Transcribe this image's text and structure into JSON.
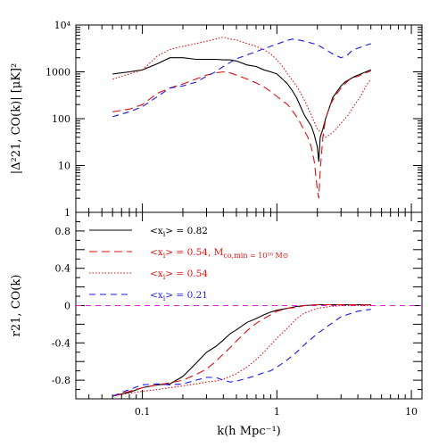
{
  "chart_data": [
    {
      "type": "line",
      "panel": "top",
      "ylabel": "|Δ²21, CO(k)| [μK]²",
      "xscale": "log",
      "yscale": "log",
      "xlim": [
        0.032,
        12
      ],
      "ylim": [
        1,
        10000
      ],
      "yticks": [
        1,
        10,
        100,
        1000,
        10000
      ],
      "ytick_labels": [
        "1",
        "10",
        "100",
        "1000",
        "10⁴"
      ],
      "series": [
        {
          "color": "#000000",
          "dash": "solid",
          "x": [
            0.06,
            0.08,
            0.1,
            0.13,
            0.16,
            0.2,
            0.25,
            0.3,
            0.35,
            0.4,
            0.45,
            0.5,
            0.6,
            0.7,
            0.8,
            0.9,
            1.0,
            1.1,
            1.2,
            1.3,
            1.4,
            1.5,
            1.6,
            1.7,
            1.8,
            1.9,
            2.0,
            2.05,
            2.1,
            2.2,
            2.3,
            2.4,
            2.5,
            2.6,
            2.8,
            3.0,
            3.2,
            3.5,
            3.8,
            4.2,
            4.6,
            5.0
          ],
          "y": [
            900,
            1000,
            1100,
            1500,
            2000,
            2000,
            1850,
            1850,
            1850,
            1800,
            1800,
            1700,
            1400,
            1300,
            1100,
            1000,
            900,
            700,
            550,
            400,
            280,
            180,
            120,
            90,
            70,
            45,
            25,
            12,
            40,
            60,
            100,
            140,
            200,
            280,
            380,
            500,
            600,
            700,
            800,
            900,
            1000,
            1100
          ]
        },
        {
          "color": "#e01010",
          "dash": "long",
          "x": [
            0.06,
            0.08,
            0.1,
            0.13,
            0.16,
            0.2,
            0.25,
            0.3,
            0.35,
            0.4,
            0.45,
            0.5,
            0.6,
            0.7,
            0.8,
            0.9,
            1.0,
            1.1,
            1.2,
            1.3,
            1.4,
            1.5,
            1.6,
            1.7,
            1.8,
            1.9,
            2.0,
            2.05,
            2.1,
            2.2,
            2.3,
            2.5,
            2.7,
            3.0,
            3.3,
            3.6,
            4.0,
            4.4,
            4.8,
            5.0
          ],
          "y": [
            140,
            160,
            200,
            350,
            450,
            550,
            700,
            850,
            950,
            1000,
            950,
            850,
            700,
            580,
            480,
            380,
            300,
            240,
            200,
            150,
            110,
            80,
            55,
            40,
            25,
            12,
            3,
            2,
            8,
            40,
            100,
            200,
            300,
            450,
            600,
            750,
            800,
            900,
            1000,
            1050
          ]
        },
        {
          "color": "#e01010",
          "dash": "dotted",
          "x": [
            0.06,
            0.08,
            0.1,
            0.13,
            0.16,
            0.2,
            0.25,
            0.3,
            0.35,
            0.4,
            0.45,
            0.5,
            0.6,
            0.7,
            0.8,
            0.9,
            1.0,
            1.1,
            1.2,
            1.4,
            1.6,
            1.8,
            2.0,
            2.3,
            2.6,
            3.0,
            3.4,
            3.8,
            4.2,
            4.6,
            5.0
          ],
          "y": [
            700,
            900,
            1100,
            2200,
            3000,
            3500,
            4000,
            4500,
            5000,
            5500,
            5000,
            4800,
            4000,
            3500,
            3000,
            2400,
            1800,
            1300,
            900,
            500,
            250,
            120,
            60,
            40,
            50,
            80,
            120,
            200,
            300,
            500,
            700
          ]
        },
        {
          "color": "#1a1ae6",
          "dash": "medium",
          "x": [
            0.06,
            0.08,
            0.1,
            0.13,
            0.16,
            0.2,
            0.25,
            0.3,
            0.35,
            0.4,
            0.45,
            0.5,
            0.6,
            0.7,
            0.8,
            0.9,
            1.0,
            1.1,
            1.2,
            1.3,
            1.5,
            1.7,
            2.0,
            2.3,
            2.6,
            3.0,
            3.3,
            3.6,
            4.0,
            4.5,
            5.0
          ],
          "y": [
            110,
            140,
            180,
            300,
            450,
            500,
            600,
            800,
            1000,
            1300,
            1600,
            1900,
            2300,
            2700,
            3100,
            3500,
            3900,
            4300,
            4700,
            5000,
            4700,
            4300,
            3800,
            3000,
            2400,
            2000,
            2200,
            2800,
            3200,
            3600,
            4000
          ]
        }
      ]
    },
    {
      "type": "line",
      "panel": "bottom",
      "xlabel": "k(h Mpc⁻¹)",
      "ylabel": "r21, CO(k)",
      "xscale": "log",
      "xlim": [
        0.032,
        12
      ],
      "ylim": [
        -1,
        1
      ],
      "xticks": [
        0.1,
        1,
        10
      ],
      "xtick_labels": [
        "0.1",
        "1",
        "10"
      ],
      "yticks": [
        -0.8,
        -0.4,
        0,
        0.4,
        0.8
      ],
      "ytick_labels": [
        "-0.8",
        "-0.4",
        "0",
        "0.4",
        "0.8"
      ],
      "reference_line": {
        "y": 0,
        "color": "#e020e0",
        "dash": "dashed"
      },
      "series": [
        {
          "color": "#000000",
          "dash": "solid",
          "x": [
            0.06,
            0.08,
            0.1,
            0.13,
            0.16,
            0.2,
            0.25,
            0.3,
            0.35,
            0.4,
            0.45,
            0.5,
            0.6,
            0.7,
            0.8,
            0.9,
            1.0,
            1.2,
            1.4,
            1.6,
            2.0,
            2.5,
            3.0,
            4.0,
            5.0
          ],
          "y": [
            -0.97,
            -0.93,
            -0.88,
            -0.85,
            -0.84,
            -0.76,
            -0.62,
            -0.5,
            -0.44,
            -0.37,
            -0.3,
            -0.26,
            -0.18,
            -0.14,
            -0.1,
            -0.07,
            -0.05,
            -0.03,
            -0.01,
            0.0,
            0.01,
            0.01,
            0.01,
            0.01,
            0.01
          ]
        },
        {
          "color": "#e01010",
          "dash": "long",
          "x": [
            0.06,
            0.08,
            0.1,
            0.13,
            0.16,
            0.2,
            0.25,
            0.3,
            0.35,
            0.4,
            0.45,
            0.5,
            0.6,
            0.7,
            0.8,
            0.9,
            1.0,
            1.2,
            1.4,
            1.6,
            2.0,
            2.5,
            3.0,
            4.0,
            5.0
          ],
          "y": [
            -0.97,
            -0.92,
            -0.88,
            -0.85,
            -0.83,
            -0.8,
            -0.74,
            -0.68,
            -0.6,
            -0.52,
            -0.45,
            -0.38,
            -0.27,
            -0.19,
            -0.14,
            -0.1,
            -0.06,
            -0.03,
            -0.02,
            0.0,
            0.01,
            0.01,
            0.01,
            0.01,
            0.01
          ]
        },
        {
          "color": "#e01010",
          "dash": "dotted",
          "x": [
            0.06,
            0.08,
            0.1,
            0.13,
            0.16,
            0.2,
            0.25,
            0.3,
            0.35,
            0.4,
            0.45,
            0.5,
            0.6,
            0.7,
            0.8,
            0.9,
            1.0,
            1.2,
            1.4,
            1.6,
            2.0,
            2.5,
            3.0,
            4.0,
            5.0
          ],
          "y": [
            -0.97,
            -0.94,
            -0.92,
            -0.9,
            -0.88,
            -0.86,
            -0.84,
            -0.82,
            -0.81,
            -0.79,
            -0.76,
            -0.73,
            -0.66,
            -0.58,
            -0.5,
            -0.42,
            -0.35,
            -0.24,
            -0.14,
            -0.08,
            -0.03,
            -0.01,
            0.0,
            0.0,
            0.0
          ]
        },
        {
          "color": "#1a1ae6",
          "dash": "medium",
          "x": [
            0.06,
            0.08,
            0.1,
            0.13,
            0.16,
            0.2,
            0.25,
            0.3,
            0.35,
            0.4,
            0.45,
            0.5,
            0.6,
            0.7,
            0.8,
            0.9,
            1.0,
            1.2,
            1.4,
            1.6,
            2.0,
            2.5,
            3.0,
            4.0,
            5.0
          ],
          "y": [
            -0.97,
            -0.9,
            -0.85,
            -0.84,
            -0.85,
            -0.84,
            -0.8,
            -0.77,
            -0.77,
            -0.8,
            -0.82,
            -0.81,
            -0.78,
            -0.75,
            -0.72,
            -0.7,
            -0.66,
            -0.58,
            -0.5,
            -0.42,
            -0.3,
            -0.2,
            -0.12,
            -0.06,
            -0.04
          ]
        }
      ],
      "legend": {
        "placement": "upper-left",
        "entries": [
          {
            "x_sym": "<x",
            "sub": "i",
            "rest": "> = 0.82",
            "extra": "",
            "color": "#000000",
            "dash": "solid"
          },
          {
            "x_sym": "<x",
            "sub": "i",
            "rest": "> = 0.54, M",
            "extra": "co,min = 10¹⁰ M⊙",
            "color": "#e01010",
            "dash": "long"
          },
          {
            "x_sym": "<x",
            "sub": "i",
            "rest": "> = 0.54",
            "extra": "",
            "color": "#e01010",
            "dash": "dotted"
          },
          {
            "x_sym": "<x",
            "sub": "i",
            "rest": "> = 0.21",
            "extra": "",
            "color": "#1a1ae6",
            "dash": "medium"
          }
        ]
      }
    }
  ]
}
